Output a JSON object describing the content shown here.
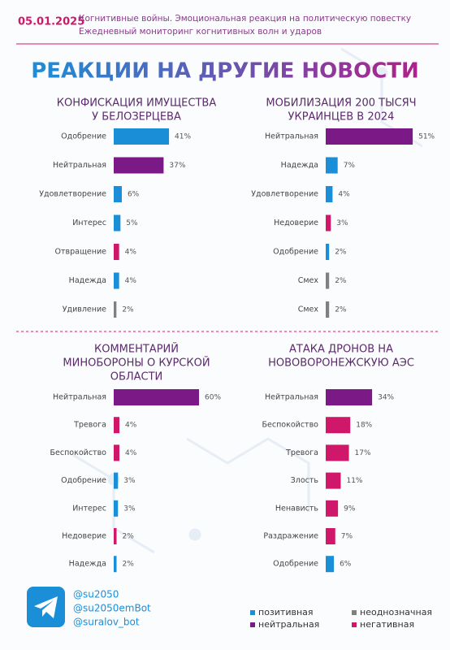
{
  "header": {
    "date": "05.01.2025",
    "line1": "Когнитивные войны. Эмоциональная реакция на политическую повестку",
    "line2": "Ежедневный мониторинг когнитивных волн и ударов"
  },
  "title": "РЕАКЦИИ НА ДРУГИЕ НОВОСТИ",
  "chart_data": [
    {
      "type": "bar",
      "title": [
        "КОНФИСКАЦИЯ ИМУЩЕСТВА",
        "У БЕЛОЗЕРЦЕВА"
      ],
      "categories": [
        "Одобрение",
        "Нейтральная",
        "Удовлетворение",
        "Интерес",
        "Отвращение",
        "Надежда",
        "Удивление"
      ],
      "values": [
        41,
        37,
        6,
        5,
        4,
        4,
        2
      ],
      "value_labels": [
        "41%",
        "37%",
        "6%",
        "5%",
        "4%",
        "4%",
        "2%"
      ],
      "colors": [
        "#1a8fd8",
        "#7b1a86",
        "#1a8fd8",
        "#1a8fd8",
        "#d0186a",
        "#1a8fd8",
        "#808080"
      ]
    },
    {
      "type": "bar",
      "title": [
        "МОБИЛИЗАЦИЯ 200 ТЫСЯЧ",
        "УКРАИНЦЕВ В 2024"
      ],
      "categories": [
        "Нейтральная",
        "Надежда",
        "Удовлетворение",
        "Недоверие",
        "Одобрение",
        "Смех",
        "Смех"
      ],
      "values": [
        51,
        7,
        4,
        3,
        2,
        2,
        2
      ],
      "value_labels": [
        "51%",
        "7%",
        "4%",
        "3%",
        "2%",
        "2%",
        "2%"
      ],
      "colors": [
        "#7b1a86",
        "#1a8fd8",
        "#1a8fd8",
        "#d0186a",
        "#1a8fd8",
        "#808080",
        "#808080"
      ]
    },
    {
      "type": "bar",
      "title": [
        "КОММЕНТАРИЙ",
        "МИНОБОРОНЫ О КУРСКОЙ",
        "ОБЛАСТИ"
      ],
      "categories": [
        "Нейтральная",
        "Тревога",
        "Беспокойство",
        "Одобрение",
        "Интерес",
        "Недоверие",
        "Надежда"
      ],
      "values": [
        60,
        4,
        4,
        3,
        3,
        2,
        2
      ],
      "value_labels": [
        "60%",
        "4%",
        "4%",
        "3%",
        "3%",
        "2%",
        "2%"
      ],
      "colors": [
        "#7b1a86",
        "#d0186a",
        "#d0186a",
        "#1a8fd8",
        "#1a8fd8",
        "#d0186a",
        "#1a8fd8"
      ]
    },
    {
      "type": "bar",
      "title": [
        "АТАКА ДРОНОВ НА",
        "НОВОВОРОНЕЖСКУЮ АЭС"
      ],
      "categories": [
        "Нейтральная",
        "Беспокойство",
        "Тревога",
        "Злость",
        "Ненависть",
        "Раздражение",
        "Одобрение"
      ],
      "values": [
        34,
        18,
        17,
        11,
        9,
        7,
        6
      ],
      "value_labels": [
        "34%",
        "18%",
        "17%",
        "11%",
        "9%",
        "7%",
        "6%"
      ],
      "colors": [
        "#7b1a86",
        "#d0186a",
        "#d0186a",
        "#d0186a",
        "#d0186a",
        "#d0186a",
        "#1a8fd8"
      ]
    }
  ],
  "legend": [
    {
      "label": "позитивная",
      "color": "#1a8fd8"
    },
    {
      "label": "неоднозначная",
      "color": "#808080"
    },
    {
      "label": "нейтральная",
      "color": "#7b1a86"
    },
    {
      "label": "негативная",
      "color": "#d0186a"
    }
  ],
  "footer": {
    "handles": [
      "@su2050",
      "@su2050emBot",
      "@suralov_bot"
    ]
  }
}
